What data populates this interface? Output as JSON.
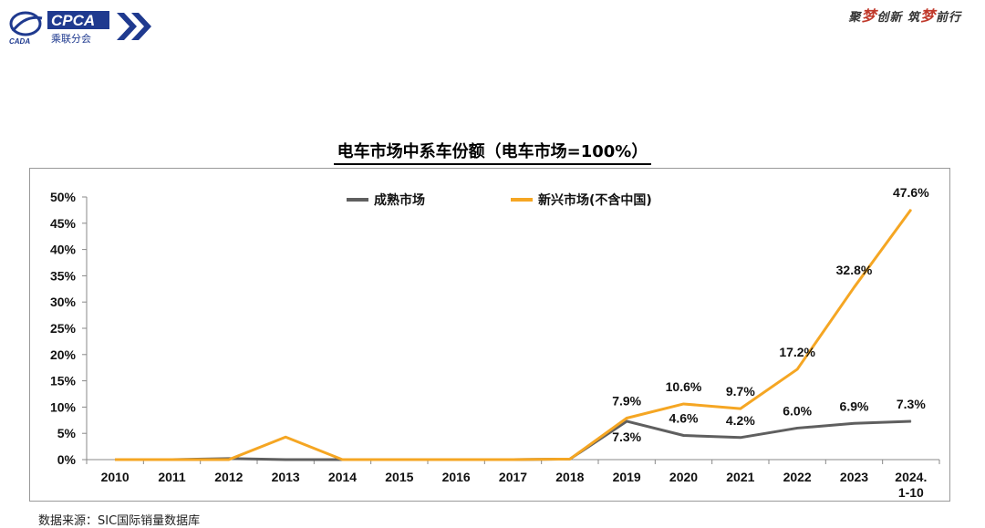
{
  "header": {
    "logo_text": "CPCA",
    "logo_sub": "乘联分会",
    "logo_small": "CADA",
    "slogan_parts": [
      "聚",
      "梦",
      "创新 筑",
      "梦",
      "前行"
    ]
  },
  "source_note": "数据来源：SIC国际销量数据库",
  "colors": {
    "mature": "#5f5f5f",
    "emerging": "#f5a623",
    "logo_blue": "#1f3a8f"
  },
  "chart_data": {
    "type": "line",
    "title": "电车市场中系车份额（电车市场=100%）",
    "categories": [
      "2010",
      "2011",
      "2012",
      "2013",
      "2014",
      "2015",
      "2016",
      "2017",
      "2018",
      "2019",
      "2020",
      "2021",
      "2022",
      "2023",
      "2024.\n1-10"
    ],
    "ylim": [
      0,
      50
    ],
    "yticks": [
      "0%",
      "5%",
      "10%",
      "15%",
      "20%",
      "25%",
      "30%",
      "35%",
      "40%",
      "45%",
      "50%"
    ],
    "grid": false,
    "legend_position": "top-center",
    "series": [
      {
        "name": "成熟市场",
        "color": "#5f5f5f",
        "values": [
          0,
          0,
          0.2,
          0,
          0,
          0,
          0,
          0,
          0.1,
          7.3,
          4.6,
          4.2,
          6.0,
          6.9,
          7.3
        ],
        "labels": [
          null,
          null,
          null,
          null,
          null,
          null,
          null,
          null,
          null,
          "7.3%",
          "4.6%",
          "4.2%",
          "6.0%",
          "6.9%",
          "7.3%"
        ]
      },
      {
        "name": "新兴市场(不含中国)",
        "color": "#f5a623",
        "values": [
          0,
          0,
          0,
          4.3,
          0,
          0,
          0,
          0,
          0.1,
          7.9,
          10.6,
          9.7,
          17.2,
          32.8,
          47.6
        ],
        "labels": [
          null,
          null,
          null,
          null,
          null,
          null,
          null,
          null,
          null,
          "7.9%",
          "10.6%",
          "9.7%",
          "17.2%",
          "32.8%",
          "47.6%"
        ]
      }
    ]
  }
}
